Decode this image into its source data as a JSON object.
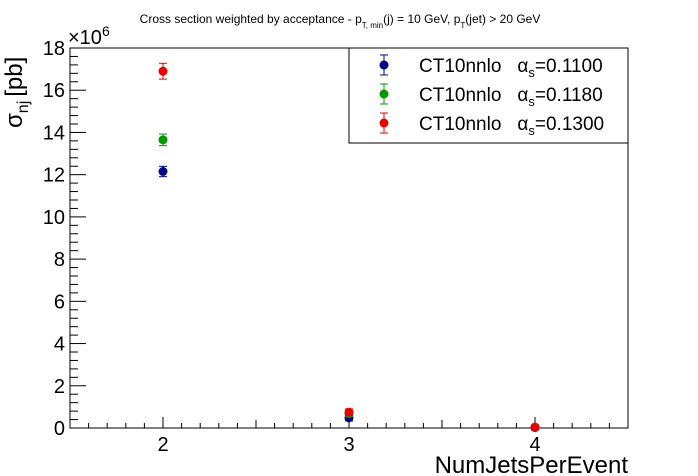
{
  "chart_data": {
    "type": "scatter",
    "title": {
      "prefix": "Cross section weighted by acceptance - p",
      "sub1": "T, min",
      "mid": "(j) = 10 GeV, p",
      "sub2": "T",
      "suffix": "(jet) > 20 GeV"
    },
    "xlabel": "NumJetsPerEvent",
    "ylabel": {
      "main": "σ",
      "sub": "nj",
      "unit": "[pb]"
    },
    "y_exponent_label": "×10",
    "y_exponent_power": "6",
    "xlim": [
      1.5,
      4.5
    ],
    "ylim": [
      0,
      18
    ],
    "x_ticks": [
      2,
      3,
      4
    ],
    "x_tick_labels": [
      "2",
      "3",
      "4"
    ],
    "y_ticks": [
      0,
      2,
      4,
      6,
      8,
      10,
      12,
      14,
      16,
      18
    ],
    "y_tick_labels": [
      "0",
      "2",
      "4",
      "6",
      "8",
      "10",
      "12",
      "14",
      "16",
      "18"
    ],
    "units_note": "y values in units of 10^6 pb",
    "legend_position": "top-right",
    "series": [
      {
        "label_main": "CT10nnlo",
        "label_alpha": "α",
        "label_sub": "s",
        "label_value": "=0.1100",
        "color": "#00008b",
        "points": [
          {
            "x": 2,
            "y": 12.15,
            "err": 0.15
          },
          {
            "x": 3,
            "y": 0.48,
            "err": 0.05
          },
          {
            "x": 4,
            "y": 0.02,
            "err": 0.01
          }
        ]
      },
      {
        "label_main": "CT10nnlo",
        "label_alpha": "α",
        "label_sub": "s",
        "label_value": "=0.1180",
        "color": "#009900",
        "points": [
          {
            "x": 2,
            "y": 13.65,
            "err": 0.18
          },
          {
            "x": 3,
            "y": 0.68,
            "err": 0.05
          },
          {
            "x": 4,
            "y": 0.03,
            "err": 0.01
          }
        ]
      },
      {
        "label_main": "CT10nnlo",
        "label_alpha": "α",
        "label_sub": "s",
        "label_value": "=0.1300",
        "color": "#ee0000",
        "points": [
          {
            "x": 2,
            "y": 16.9,
            "err": 0.28
          },
          {
            "x": 3,
            "y": 0.75,
            "err": 0.06
          },
          {
            "x": 4,
            "y": 0.04,
            "err": 0.01
          }
        ]
      }
    ]
  }
}
